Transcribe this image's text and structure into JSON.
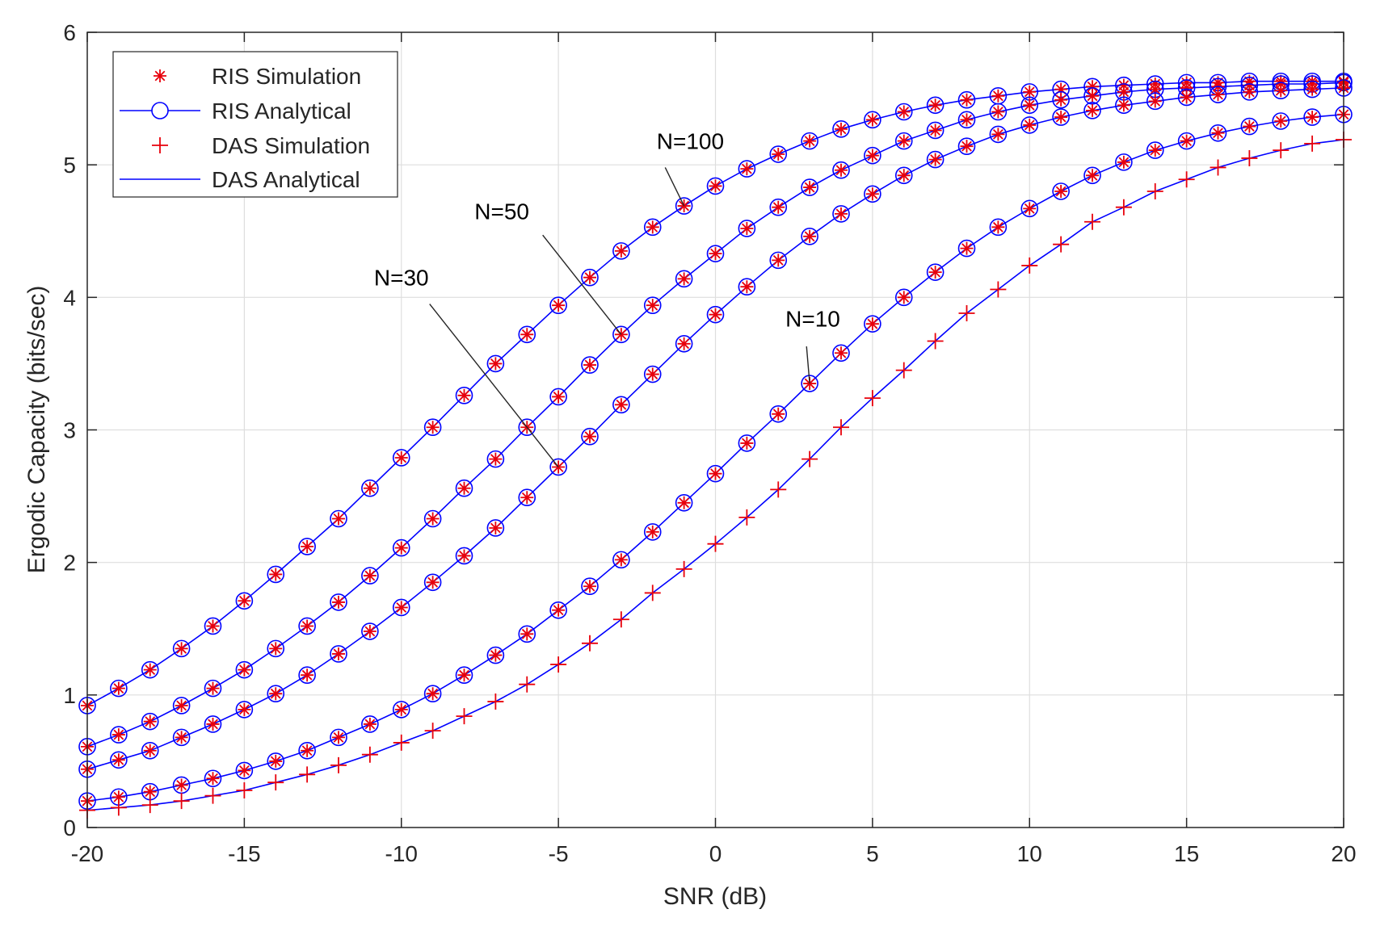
{
  "chart_data": {
    "type": "line",
    "xlabel": "SNR (dB)",
    "ylabel": "Ergodic Capacity (bits/sec)",
    "xlim": [
      -20,
      20
    ],
    "ylim": [
      0,
      6
    ],
    "xticks": [
      -20,
      -15,
      -10,
      -5,
      0,
      5,
      10,
      15,
      20
    ],
    "yticks": [
      0,
      1,
      2,
      3,
      4,
      5,
      6
    ],
    "xtick_labels": [
      "-20",
      "-15",
      "-10",
      "-5",
      "0",
      "5",
      "10",
      "15",
      "20"
    ],
    "ytick_labels": [
      "0",
      "1",
      "2",
      "3",
      "4",
      "5",
      "6"
    ],
    "grid": true,
    "legend_position": "top-left",
    "legend": [
      {
        "label": "RIS Simulation",
        "marker": "asterisk",
        "color": "#e8000b"
      },
      {
        "label": "RIS Analytical",
        "marker": "circle-line",
        "color": "#0000ff"
      },
      {
        "label": "DAS Simulation",
        "marker": "plus",
        "color": "#e8000b"
      },
      {
        "label": "DAS Analytical",
        "marker": "line",
        "color": "#0000ff"
      }
    ],
    "x": [
      -20,
      -19,
      -18,
      -17,
      -16,
      -15,
      -14,
      -13,
      -12,
      -11,
      -10,
      -9,
      -8,
      -7,
      -6,
      -5,
      -4,
      -3,
      -2,
      -1,
      0,
      1,
      2,
      3,
      4,
      5,
      6,
      7,
      8,
      9,
      10,
      11,
      12,
      13,
      14,
      15,
      16,
      17,
      18,
      19,
      20
    ],
    "series": [
      {
        "label": "N=100",
        "kind": "RIS",
        "values": [
          0.92,
          1.05,
          1.19,
          1.35,
          1.52,
          1.71,
          1.91,
          2.12,
          2.33,
          2.56,
          2.79,
          3.02,
          3.26,
          3.5,
          3.72,
          3.94,
          4.15,
          4.35,
          4.53,
          4.69,
          4.84,
          4.97,
          5.08,
          5.18,
          5.27,
          5.34,
          5.4,
          5.45,
          5.49,
          5.52,
          5.55,
          5.57,
          5.59,
          5.6,
          5.61,
          5.62,
          5.62,
          5.63,
          5.63,
          5.63,
          5.63
        ]
      },
      {
        "label": "N=50",
        "kind": "RIS",
        "values": [
          0.61,
          0.7,
          0.8,
          0.92,
          1.05,
          1.19,
          1.35,
          1.52,
          1.7,
          1.9,
          2.11,
          2.33,
          2.56,
          2.78,
          3.02,
          3.25,
          3.49,
          3.72,
          3.94,
          4.14,
          4.33,
          4.52,
          4.68,
          4.83,
          4.96,
          5.07,
          5.18,
          5.26,
          5.34,
          5.4,
          5.45,
          5.49,
          5.52,
          5.55,
          5.57,
          5.58,
          5.59,
          5.6,
          5.61,
          5.61,
          5.62
        ]
      },
      {
        "label": "N=30",
        "kind": "RIS",
        "values": [
          0.44,
          0.51,
          0.58,
          0.68,
          0.78,
          0.89,
          1.01,
          1.15,
          1.31,
          1.48,
          1.66,
          1.85,
          2.05,
          2.26,
          2.49,
          2.72,
          2.95,
          3.19,
          3.42,
          3.65,
          3.87,
          4.08,
          4.28,
          4.46,
          4.63,
          4.78,
          4.92,
          5.04,
          5.14,
          5.23,
          5.3,
          5.36,
          5.41,
          5.45,
          5.48,
          5.51,
          5.53,
          5.55,
          5.56,
          5.57,
          5.58
        ]
      },
      {
        "label": "N=10",
        "kind": "RIS",
        "values": [
          0.2,
          0.23,
          0.27,
          0.32,
          0.37,
          0.43,
          0.5,
          0.58,
          0.68,
          0.78,
          0.89,
          1.01,
          1.15,
          1.3,
          1.46,
          1.64,
          1.82,
          2.02,
          2.23,
          2.45,
          2.67,
          2.9,
          3.12,
          3.35,
          3.58,
          3.8,
          4.0,
          4.19,
          4.37,
          4.53,
          4.67,
          4.8,
          4.92,
          5.02,
          5.11,
          5.18,
          5.24,
          5.29,
          5.33,
          5.36,
          5.38
        ]
      },
      {
        "label": "DAS",
        "kind": "DAS",
        "values": [
          0.13,
          0.15,
          0.17,
          0.2,
          0.24,
          0.28,
          0.34,
          0.4,
          0.47,
          0.55,
          0.64,
          0.73,
          0.84,
          0.95,
          1.08,
          1.23,
          1.39,
          1.57,
          1.77,
          1.95,
          2.14,
          2.34,
          2.55,
          2.78,
          3.02,
          3.24,
          3.45,
          3.67,
          3.88,
          4.06,
          4.24,
          4.4,
          4.57,
          4.68,
          4.8,
          4.89,
          4.98,
          5.05,
          5.11,
          5.16,
          5.19
        ]
      }
    ],
    "annotations": [
      {
        "text": "N=100",
        "point_x": -1,
        "point_y": 4.69
      },
      {
        "text": "N=50",
        "point_x": -3,
        "point_y": 3.72
      },
      {
        "text": "N=30",
        "point_x": -5,
        "point_y": 2.72
      },
      {
        "text": "N=10",
        "point_x": 3,
        "point_y": 3.35
      }
    ]
  }
}
